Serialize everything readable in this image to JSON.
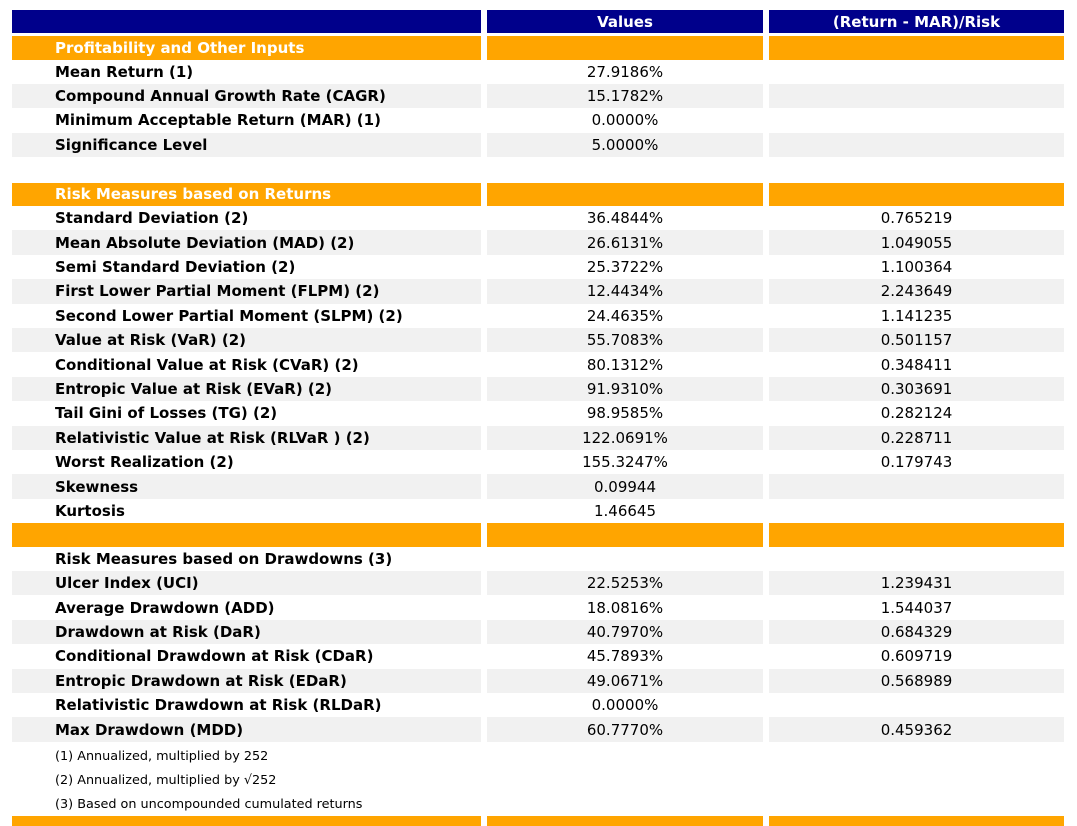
{
  "colors": {
    "header_bg": "#00008B",
    "header_text": "#FFFFFF",
    "section_band_bg": "#FFA500",
    "section_band_text": "#FFFFFF",
    "stripe_bg": "#F1F1F1",
    "body_text": "#000000"
  },
  "chart_data": {
    "type": "table",
    "title": "",
    "columns": [
      "",
      "Values",
      "(Return - MAR)/Risk"
    ],
    "sections": [
      {
        "band_label": "Profitability and Other Inputs",
        "gap_before": false,
        "rows": [
          {
            "label": "Mean Return (1)",
            "value": "27.9186%",
            "ratio": ""
          },
          {
            "label": "Compound Annual Growth Rate (CAGR)",
            "value": "15.1782%",
            "ratio": ""
          },
          {
            "label": "Minimum Acceptable Return (MAR) (1)",
            "value": "0.0000%",
            "ratio": ""
          },
          {
            "label": "Significance Level",
            "value": "5.0000%",
            "ratio": ""
          }
        ]
      },
      {
        "band_label": "Risk Measures based on Returns",
        "gap_before": true,
        "rows": [
          {
            "label": "Standard Deviation (2)",
            "value": "36.4844%",
            "ratio": "0.765219"
          },
          {
            "label": "Mean Absolute Deviation (MAD) (2)",
            "value": "26.6131%",
            "ratio": "1.049055"
          },
          {
            "label": "Semi Standard Deviation (2)",
            "value": "25.3722%",
            "ratio": "1.100364"
          },
          {
            "label": "First Lower Partial Moment (FLPM) (2)",
            "value": "12.4434%",
            "ratio": "2.243649"
          },
          {
            "label": "Second Lower Partial Moment (SLPM) (2)",
            "value": "24.4635%",
            "ratio": "1.141235"
          },
          {
            "label": "Value at Risk (VaR) (2)",
            "value": "55.7083%",
            "ratio": "0.501157"
          },
          {
            "label": "Conditional Value at Risk (CVaR) (2)",
            "value": "80.1312%",
            "ratio": "0.348411"
          },
          {
            "label": "Entropic Value at Risk (EVaR) (2)",
            "value": "91.9310%",
            "ratio": "0.303691"
          },
          {
            "label": "Tail Gini of Losses (TG) (2)",
            "value": "98.9585%",
            "ratio": "0.282124"
          },
          {
            "label": "Relativistic Value at Risk (RLVaR ) (2)",
            "value": "122.0691%",
            "ratio": "0.228711"
          },
          {
            "label": "Worst Realization (2)",
            "value": "155.3247%",
            "ratio": "0.179743"
          },
          {
            "label": "Skewness",
            "value": "0.09944",
            "ratio": ""
          },
          {
            "label": "Kurtosis",
            "value": "1.46645",
            "ratio": ""
          }
        ]
      },
      {
        "band_label": "",
        "gap_before": false,
        "rows": [
          {
            "label": "Risk Measures based on Drawdowns (3)",
            "value": "",
            "ratio": ""
          },
          {
            "label": "Ulcer Index (UCI)",
            "value": "22.5253%",
            "ratio": "1.239431"
          },
          {
            "label": "Average Drawdown (ADD)",
            "value": "18.0816%",
            "ratio": "1.544037"
          },
          {
            "label": "Drawdown at Risk (DaR)",
            "value": "40.7970%",
            "ratio": "0.684329"
          },
          {
            "label": "Conditional Drawdown at Risk (CDaR)",
            "value": "45.7893%",
            "ratio": "0.609719"
          },
          {
            "label": "Entropic Drawdown at Risk (EDaR)",
            "value": "49.0671%",
            "ratio": "0.568989"
          },
          {
            "label": "Relativistic Drawdown at Risk (RLDaR)",
            "value": "0.0000%",
            "ratio": ""
          },
          {
            "label": "Max Drawdown (MDD)",
            "value": "60.7770%",
            "ratio": "0.459362"
          }
        ]
      }
    ],
    "footnotes": [
      "(1) Annualized, multiplied by 252",
      "(2) Annualized, multiplied by √252",
      "(3) Based on uncompounded cumulated returns"
    ]
  }
}
